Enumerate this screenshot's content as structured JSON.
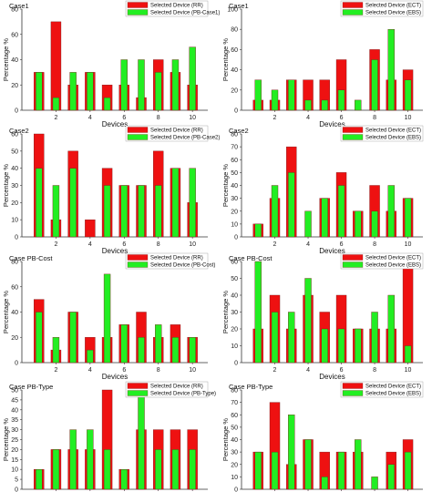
{
  "colors": {
    "red": "#ee1111",
    "green": "#22ee22",
    "edge": "#7a1a1a",
    "axis": "#333333"
  },
  "chart_data": [
    {
      "type": "bar",
      "title": "Case1",
      "xlabel": "Devices",
      "ylabel": "Percentage %",
      "ylim": [
        0,
        80
      ],
      "yticks": [
        0,
        20,
        40,
        60,
        80
      ],
      "xticks": [
        2,
        4,
        6,
        8,
        10
      ],
      "x": [
        1,
        2,
        3,
        4,
        5,
        6,
        7,
        8,
        9,
        10
      ],
      "legend_position": "top-right",
      "series": [
        {
          "name": "Selected Device (RR)",
          "color": "red",
          "values": [
            30,
            70,
            20,
            30,
            20,
            20,
            10,
            40,
            30,
            20
          ]
        },
        {
          "name": "Selected Device (PB-Case1)",
          "color": "green",
          "values": [
            30,
            10,
            30,
            30,
            10,
            40,
            40,
            30,
            40,
            50
          ]
        }
      ]
    },
    {
      "type": "bar",
      "title": "Case1",
      "xlabel": "Devices",
      "ylabel": "Percentage %",
      "ylim": [
        0,
        100
      ],
      "yticks": [
        0,
        20,
        40,
        60,
        80,
        100
      ],
      "xticks": [
        2,
        4,
        6,
        8,
        10
      ],
      "x": [
        1,
        2,
        3,
        4,
        5,
        6,
        7,
        8,
        9,
        10
      ],
      "legend_position": "top-right",
      "series": [
        {
          "name": "Selected Device (ECT)",
          "color": "red",
          "values": [
            10,
            10,
            30,
            30,
            30,
            50,
            0,
            60,
            30,
            40
          ]
        },
        {
          "name": "Selected Device (EBS)",
          "color": "green",
          "values": [
            30,
            20,
            30,
            10,
            10,
            20,
            10,
            50,
            80,
            30
          ]
        }
      ]
    },
    {
      "type": "bar",
      "title": "Case2",
      "xlabel": "Devices",
      "ylabel": "Percentage %",
      "ylim": [
        0,
        60
      ],
      "yticks": [
        0,
        10,
        20,
        30,
        40,
        50,
        60
      ],
      "xticks": [
        2,
        4,
        6,
        8,
        10
      ],
      "x": [
        1,
        2,
        3,
        4,
        5,
        6,
        7,
        8,
        9,
        10
      ],
      "legend_position": "top-right",
      "series": [
        {
          "name": "Selected Device (RR)",
          "color": "red",
          "values": [
            60,
            10,
            50,
            10,
            40,
            30,
            30,
            50,
            40,
            20
          ]
        },
        {
          "name": "Selected Device (PB-Case2)",
          "color": "green",
          "values": [
            40,
            30,
            40,
            0,
            30,
            30,
            30,
            30,
            40,
            40
          ]
        }
      ]
    },
    {
      "type": "bar",
      "title": "Case2",
      "xlabel": "Devices",
      "ylabel": "Percentage %",
      "ylim": [
        0,
        80
      ],
      "yticks": [
        0,
        10,
        20,
        30,
        40,
        50,
        60,
        70,
        80
      ],
      "xticks": [
        2,
        4,
        6,
        8,
        10
      ],
      "x": [
        1,
        2,
        3,
        4,
        5,
        6,
        7,
        8,
        9,
        10
      ],
      "legend_position": "top-right",
      "series": [
        {
          "name": "Selected Device (ECT)",
          "color": "red",
          "values": [
            10,
            30,
            70,
            0,
            30,
            50,
            20,
            40,
            20,
            30
          ]
        },
        {
          "name": "Selected Device (EBS)",
          "color": "green",
          "values": [
            10,
            40,
            50,
            20,
            30,
            40,
            20,
            20,
            40,
            30
          ]
        }
      ]
    },
    {
      "type": "bar",
      "title": "Case PB-Cost",
      "xlabel": "Devices",
      "ylabel": "Percentage %",
      "ylim": [
        0,
        80
      ],
      "yticks": [
        0,
        20,
        40,
        60,
        80
      ],
      "xticks": [
        2,
        4,
        6,
        8,
        10
      ],
      "x": [
        1,
        2,
        3,
        4,
        5,
        6,
        7,
        8,
        9,
        10
      ],
      "legend_position": "top-right",
      "series": [
        {
          "name": "Selected Device (RR)",
          "color": "red",
          "values": [
            50,
            10,
            40,
            20,
            20,
            30,
            40,
            20,
            30,
            20
          ]
        },
        {
          "name": "Selected Device (PB-Cost)",
          "color": "green",
          "values": [
            40,
            20,
            40,
            10,
            70,
            30,
            20,
            30,
            20,
            20
          ]
        }
      ]
    },
    {
      "type": "bar",
      "title": "Case PB-Cost",
      "xlabel": "Devices",
      "ylabel": "Percentage %",
      "ylim": [
        0,
        60
      ],
      "yticks": [
        0,
        10,
        20,
        30,
        40,
        50,
        60
      ],
      "xticks": [
        2,
        4,
        6,
        8,
        10
      ],
      "x": [
        1,
        2,
        3,
        4,
        5,
        6,
        7,
        8,
        9,
        10
      ],
      "legend_position": "top-right",
      "series": [
        {
          "name": "Selected Device (ECT)",
          "color": "red",
          "values": [
            20,
            40,
            20,
            40,
            30,
            40,
            20,
            20,
            20,
            60
          ]
        },
        {
          "name": "Selected Device (EBS)",
          "color": "green",
          "values": [
            60,
            30,
            30,
            50,
            20,
            20,
            20,
            30,
            40,
            10
          ]
        }
      ]
    },
    {
      "type": "bar",
      "title": "Case PB-Type",
      "xlabel": "Devices",
      "ylabel": "Percentage %",
      "ylim": [
        0,
        50
      ],
      "yticks": [
        0,
        5,
        10,
        15,
        20,
        25,
        30,
        35,
        40,
        45,
        50
      ],
      "xticks": [
        2,
        4,
        6,
        8,
        10
      ],
      "x": [
        1,
        2,
        3,
        4,
        5,
        6,
        7,
        8,
        9,
        10
      ],
      "legend_position": "top-right",
      "series": [
        {
          "name": "Selected Device (RR)",
          "color": "red",
          "values": [
            10,
            20,
            20,
            20,
            50,
            10,
            30,
            30,
            30,
            30
          ]
        },
        {
          "name": "Selected Device (PB-Type)",
          "color": "green",
          "values": [
            10,
            20,
            30,
            30,
            20,
            10,
            50,
            20,
            20,
            20
          ]
        }
      ]
    },
    {
      "type": "bar",
      "title": "Case PB-Type",
      "xlabel": "Devices",
      "ylabel": "Percentage %",
      "ylim": [
        0,
        80
      ],
      "yticks": [
        0,
        10,
        20,
        30,
        40,
        50,
        60,
        70,
        80
      ],
      "xticks": [
        2,
        4,
        6,
        8,
        10
      ],
      "x": [
        1,
        2,
        3,
        4,
        5,
        6,
        7,
        8,
        9,
        10
      ],
      "legend_position": "top-right",
      "series": [
        {
          "name": "Selected Device (ECT)",
          "color": "red",
          "values": [
            30,
            70,
            20,
            40,
            30,
            30,
            30,
            0,
            30,
            40
          ]
        },
        {
          "name": "Selected Device (EBS)",
          "color": "green",
          "values": [
            30,
            30,
            60,
            40,
            10,
            30,
            40,
            10,
            20,
            30
          ]
        }
      ]
    }
  ]
}
